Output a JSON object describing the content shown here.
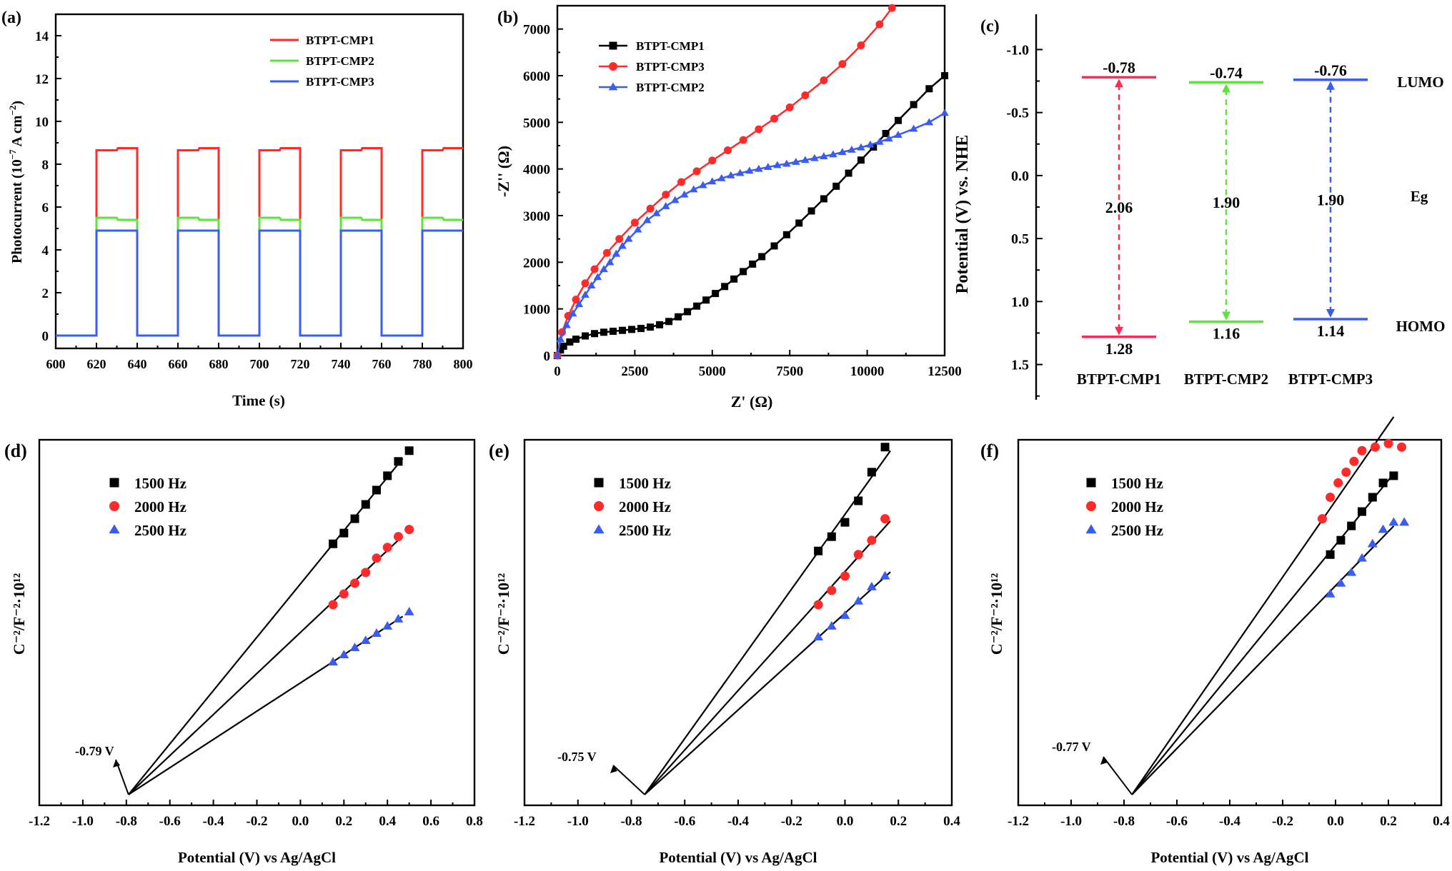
{
  "colors": {
    "red": "#ff2a2a",
    "green": "#5ee33a",
    "blue": "#3a5cf0",
    "pink_red": "#ff2a55",
    "black": "#000000"
  },
  "chart_data": [
    {
      "id": "a",
      "panel_label": "(a)",
      "type": "line",
      "xlabel": "Time (s)",
      "ylabel": "Photocurrent (10",
      "ylabel_exp": "−7",
      "ylabel_unit": " A cm",
      "ylabel_unit_exp": "−2",
      "ylabel_close": ")",
      "xlim": [
        600,
        800
      ],
      "ylim": [
        -0.6,
        15
      ],
      "xticks": [
        "600",
        "620",
        "640",
        "660",
        "680",
        "700",
        "720",
        "740",
        "760",
        "780",
        "800"
      ],
      "yticks": [
        "0",
        "2",
        "4",
        "6",
        "8",
        "10",
        "12",
        "14"
      ],
      "legend_position": "top-right",
      "light_on_intervals": [
        [
          620,
          640
        ],
        [
          660,
          680
        ],
        [
          700,
          720
        ],
        [
          740,
          760
        ],
        [
          780,
          800
        ]
      ],
      "series": [
        {
          "name": "BTPT-CMP1",
          "color": "#ff2a2a",
          "on_values": [
            8.65,
            8.75
          ]
        },
        {
          "name": "BTPT-CMP2",
          "color": "#5ee33a",
          "on_values": [
            5.5,
            5.4
          ]
        },
        {
          "name": "BTPT-CMP3",
          "color": "#3a5cf0",
          "on_values": [
            4.9,
            4.9
          ]
        }
      ],
      "off_value": 0
    },
    {
      "id": "b",
      "panel_label": "(b)",
      "type": "scatter",
      "xlabel": "Z' (Ω)",
      "ylabel": "-Z'' (Ω)",
      "xlim": [
        0,
        12500
      ],
      "ylim": [
        0,
        7500
      ],
      "xticks": [
        "0",
        "2500",
        "5000",
        "7500",
        "10000",
        "12500"
      ],
      "yticks": [
        "0",
        "1000",
        "2000",
        "3000",
        "4000",
        "5000",
        "6000",
        "7000"
      ],
      "legend_position": "top-left",
      "series": [
        {
          "name": "BTPT-CMP1",
          "color": "#000000",
          "marker": "square",
          "x": [
            0,
            100,
            200,
            400,
            600,
            900,
            1200,
            1500,
            1800,
            2100,
            2400,
            2700,
            3000,
            3300,
            3600,
            3900,
            4200,
            4500,
            4800,
            5100,
            5400,
            5700,
            6000,
            6300,
            6600,
            7000,
            7400,
            7800,
            8200,
            8600,
            9000,
            9400,
            9800,
            10200,
            10600,
            11000,
            11500,
            12000,
            12500
          ],
          "y": [
            0,
            120,
            200,
            290,
            350,
            420,
            470,
            500,
            520,
            540,
            560,
            580,
            610,
            660,
            730,
            830,
            940,
            1060,
            1190,
            1330,
            1480,
            1640,
            1800,
            1960,
            2120,
            2350,
            2590,
            2840,
            3100,
            3360,
            3630,
            3910,
            4190,
            4470,
            4760,
            5040,
            5380,
            5720,
            6000
          ]
        },
        {
          "name": "BTPT-CMP3",
          "color": "#ff2a2a",
          "marker": "circle",
          "x": [
            0,
            150,
            350,
            600,
            900,
            1200,
            1600,
            2000,
            2500,
            3000,
            3500,
            4000,
            4500,
            5000,
            5500,
            6000,
            6500,
            7000,
            7500,
            8000,
            8600,
            9200,
            9800,
            10400,
            10800
          ],
          "y": [
            0,
            500,
            850,
            1200,
            1550,
            1850,
            2200,
            2500,
            2850,
            3150,
            3450,
            3720,
            3950,
            4180,
            4400,
            4620,
            4850,
            5080,
            5320,
            5580,
            5900,
            6250,
            6650,
            7100,
            7450
          ]
        },
        {
          "name": "BTPT-CMP2",
          "color": "#3a5cf0",
          "marker": "triangle",
          "x": [
            0,
            100,
            300,
            500,
            700,
            900,
            1100,
            1300,
            1500,
            1700,
            1900,
            2100,
            2300,
            2600,
            2900,
            3200,
            3500,
            3800,
            4100,
            4400,
            4700,
            5000,
            5300,
            5600,
            5900,
            6200,
            6500,
            6800,
            7100,
            7400,
            7700,
            8000,
            8300,
            8600,
            8900,
            9200,
            9500,
            9800,
            10100,
            10400,
            10700,
            11000,
            11500,
            12000,
            12500
          ],
          "y": [
            0,
            350,
            650,
            900,
            1100,
            1300,
            1500,
            1680,
            1850,
            2000,
            2180,
            2350,
            2500,
            2700,
            2900,
            3050,
            3200,
            3330,
            3450,
            3560,
            3650,
            3730,
            3800,
            3860,
            3910,
            3960,
            4000,
            4040,
            4080,
            4110,
            4150,
            4190,
            4230,
            4270,
            4310,
            4360,
            4410,
            4460,
            4520,
            4580,
            4650,
            4730,
            4860,
            5000,
            5200
          ]
        }
      ]
    },
    {
      "id": "c",
      "panel_label": "(c)",
      "type": "diagram",
      "ylabel": "Potential (V) vs. NHE",
      "ylim": [
        1.78,
        -1.28
      ],
      "yticks": [
        "-1.0",
        "-0.5",
        "0.0",
        "0.5",
        "1.0",
        "1.5"
      ],
      "side_labels": {
        "top": "LUMO",
        "middle": "Eg",
        "bottom": "HOMO"
      },
      "levels": [
        {
          "name": "BTPT-CMP1",
          "color": "#ff2a55",
          "lumo": -0.78,
          "homo": 1.28,
          "gap": 2.06,
          "lumo_label": "-0.78",
          "homo_label": "1.28",
          "gap_label": "2.06"
        },
        {
          "name": "BTPT-CMP2",
          "color": "#5ee33a",
          "lumo": -0.74,
          "homo": 1.16,
          "gap": 1.9,
          "lumo_label": "-0.74",
          "homo_label": "1.16",
          "gap_label": "1.90"
        },
        {
          "name": "BTPT-CMP3",
          "color": "#3a5cf0",
          "lumo": -0.76,
          "homo": 1.14,
          "gap": 1.9,
          "lumo_label": "-0.76",
          "homo_label": "1.14",
          "gap_label": "1.90"
        }
      ]
    },
    {
      "id": "d",
      "panel_label": "(d)",
      "type": "scatter",
      "xlabel": "Potential (V) vs Ag/AgCl",
      "ylabel": "C⁻²/F⁻²·10¹²",
      "xlim": [
        -1.2,
        0.8
      ],
      "xticks": [
        "-1.2",
        "-1.0",
        "-0.8",
        "-0.6",
        "-0.4",
        "-0.2",
        "0.0",
        "0.2",
        "0.4",
        "0.6",
        "0.8"
      ],
      "intercept": -0.79,
      "annotation": "-0.79 V",
      "legend_position": "top-left",
      "fit_end_x": 0.45,
      "series": [
        {
          "name": "1500 Hz",
          "color": "#000000",
          "marker": "square",
          "x": [
            0.15,
            0.2,
            0.25,
            0.3,
            0.35,
            0.4,
            0.45,
            0.5
          ],
          "y": [
            0.73,
            0.76,
            0.8,
            0.84,
            0.88,
            0.92,
            0.96,
            0.99
          ]
        },
        {
          "name": "2000 Hz",
          "color": "#ff2a2a",
          "marker": "circle",
          "x": [
            0.15,
            0.2,
            0.25,
            0.3,
            0.35,
            0.4,
            0.45,
            0.5
          ],
          "y": [
            0.56,
            0.59,
            0.62,
            0.65,
            0.69,
            0.72,
            0.75,
            0.77
          ]
        },
        {
          "name": "2500 Hz",
          "color": "#3a5cf0",
          "marker": "triangle",
          "x": [
            0.15,
            0.2,
            0.25,
            0.3,
            0.35,
            0.4,
            0.45,
            0.5
          ],
          "y": [
            0.4,
            0.42,
            0.44,
            0.46,
            0.48,
            0.5,
            0.52,
            0.54
          ]
        }
      ]
    },
    {
      "id": "e",
      "panel_label": "(e)",
      "type": "scatter",
      "xlabel": "Potential (V) vs Ag/AgCl",
      "ylabel": "C⁻²/F⁻²·10¹²",
      "xlim": [
        -1.2,
        0.4
      ],
      "xticks": [
        "-1.2",
        "-1.0",
        "-0.8",
        "-0.6",
        "-0.4",
        "-0.2",
        "0.0",
        "0.2",
        "0.4"
      ],
      "intercept": -0.75,
      "annotation": "-0.75 V",
      "legend_position": "top-left",
      "fit_end_x": 0.15,
      "series": [
        {
          "name": "1500 Hz",
          "color": "#000000",
          "marker": "square",
          "x": [
            -0.1,
            -0.05,
            0.0,
            0.05,
            0.1,
            0.15
          ],
          "y": [
            0.71,
            0.75,
            0.79,
            0.85,
            0.93,
            1.0
          ]
        },
        {
          "name": "2000 Hz",
          "color": "#ff2a2a",
          "marker": "circle",
          "x": [
            -0.1,
            -0.05,
            0.0,
            0.05,
            0.1,
            0.15
          ],
          "y": [
            0.56,
            0.6,
            0.64,
            0.7,
            0.74,
            0.8
          ]
        },
        {
          "name": "2500 Hz",
          "color": "#3a5cf0",
          "marker": "triangle",
          "x": [
            -0.1,
            -0.05,
            0.0,
            0.05,
            0.1,
            0.15
          ],
          "y": [
            0.47,
            0.5,
            0.53,
            0.57,
            0.61,
            0.64
          ]
        }
      ]
    },
    {
      "id": "f",
      "panel_label": "(f)",
      "type": "scatter",
      "xlabel": "Potential (V) vs Ag/AgCl",
      "ylabel": "C⁻²/F⁻²·10¹²",
      "xlim": [
        -1.2,
        0.4
      ],
      "xticks": [
        "-1.2",
        "-1.0",
        "-0.8",
        "-0.6",
        "-0.4",
        "-0.2",
        "0.0",
        "0.2",
        "0.4"
      ],
      "intercept": -0.77,
      "annotation": "-0.77 V",
      "legend_position": "top-left",
      "fit_end_x": 0.2,
      "series": [
        {
          "name": "1500 Hz",
          "color": "#000000",
          "marker": "square",
          "x": [
            -0.02,
            0.02,
            0.06,
            0.1,
            0.14,
            0.18,
            0.22
          ],
          "y": [
            0.7,
            0.74,
            0.78,
            0.82,
            0.86,
            0.9,
            0.92
          ]
        },
        {
          "name": "2000 Hz",
          "color": "#ff2a2a",
          "marker": "circle",
          "x": [
            -0.05,
            -0.02,
            0.01,
            0.04,
            0.07,
            0.1,
            0.15,
            0.2,
            0.25
          ],
          "y": [
            0.8,
            0.86,
            0.9,
            0.93,
            0.96,
            0.99,
            1.0,
            1.01,
            1.0
          ]
        },
        {
          "name": "2500 Hz",
          "color": "#3a5cf0",
          "marker": "triangle",
          "x": [
            -0.02,
            0.02,
            0.06,
            0.1,
            0.14,
            0.18,
            0.22,
            0.26
          ],
          "y": [
            0.59,
            0.62,
            0.65,
            0.69,
            0.73,
            0.77,
            0.79,
            0.79
          ]
        }
      ]
    }
  ]
}
